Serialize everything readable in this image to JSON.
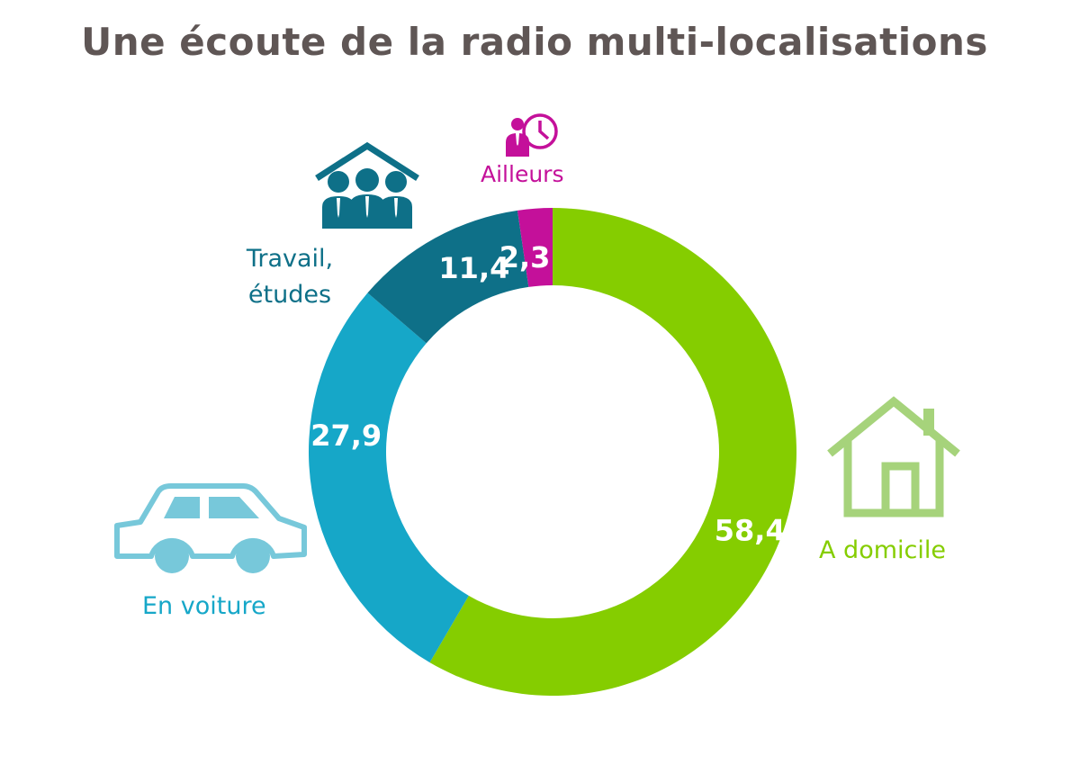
{
  "title": "Une écoute de la radio multi-localisations",
  "colors": {
    "title": "#5f5655",
    "domicile": "#85cd00",
    "voiture": "#16a7c8",
    "travail": "#0e7088",
    "ailleurs": "#c4109a",
    "house_icon": "#a6d37b",
    "car_icon": "#77c8da"
  },
  "chart_data": {
    "type": "pie",
    "donut": true,
    "title": "Une écoute de la radio multi-localisations",
    "series": [
      {
        "name": "",
        "values": [
          {
            "label": "A domicile",
            "value": 58.4,
            "display": "58,4",
            "color": "#85cd00"
          },
          {
            "label": "En voiture",
            "value": 27.9,
            "display": "27,9",
            "color": "#16a7c8"
          },
          {
            "label": "Travail, études",
            "value": 11.4,
            "display": "11,4",
            "color": "#0e7088"
          },
          {
            "label": "Ailleurs",
            "value": 2.3,
            "display": "2,3",
            "color": "#c4109a"
          }
        ]
      }
    ],
    "start": "12 o'clock",
    "direction": "clockwise",
    "legend": "none"
  },
  "labels": {
    "domicile": "A domicile",
    "voiture": "En voiture",
    "travail_line1": "Travail,",
    "travail_line2": "études",
    "ailleurs": "Ailleurs"
  },
  "icons": {
    "domicile": "house-icon",
    "voiture": "car-icon",
    "travail": "office-people-icon",
    "ailleurs": "person-clock-icon"
  }
}
